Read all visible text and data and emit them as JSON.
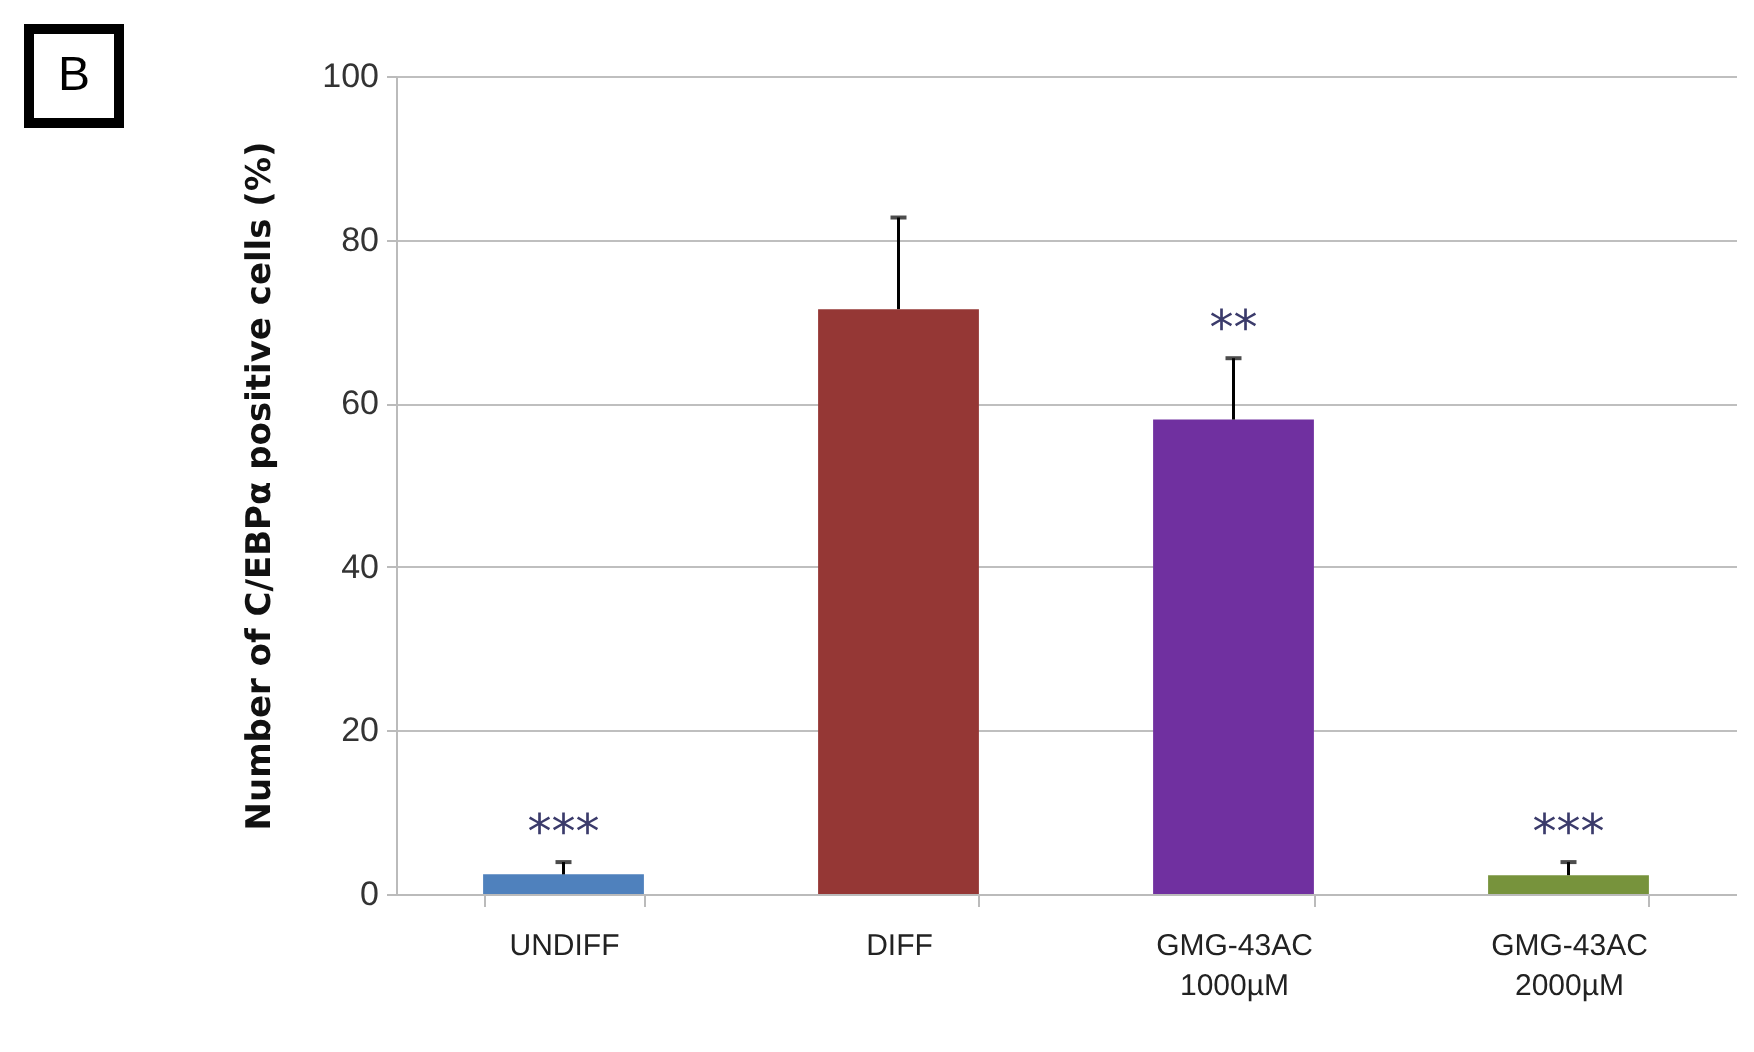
{
  "chart_data": {
    "type": "bar",
    "ylabel": "Number of C/EBPα positive cells (%)",
    "categories": [
      "UNDIFF",
      "DIFF",
      "GMG-43AC 1000µM",
      "GMG-43AC 2000µM"
    ],
    "values": [
      2.4,
      71.5,
      58.0,
      2.3
    ],
    "colors": [
      "#4f81bd",
      "#953735",
      "#7030a0",
      "#77933c"
    ],
    "errors": [
      [
        2.4,
        3.9
      ],
      [
        71.5,
        82.7
      ],
      [
        58.0,
        65.5
      ],
      [
        2.3,
        3.9
      ]
    ],
    "ylim": [
      0,
      100
    ],
    "yticks": [
      0,
      20,
      40,
      60,
      80,
      100
    ],
    "grid": "y",
    "annotations": [
      "B",
      {
        "text": "***",
        "x": "UNDIFF",
        "y": 2.4
      },
      {
        "text": "**",
        "x": "GMG-43AC 1000µM",
        "y": 58.0
      },
      {
        "text": "***",
        "x": "GMG-43AC 2000µM",
        "y": 2.3
      }
    ]
  }
}
